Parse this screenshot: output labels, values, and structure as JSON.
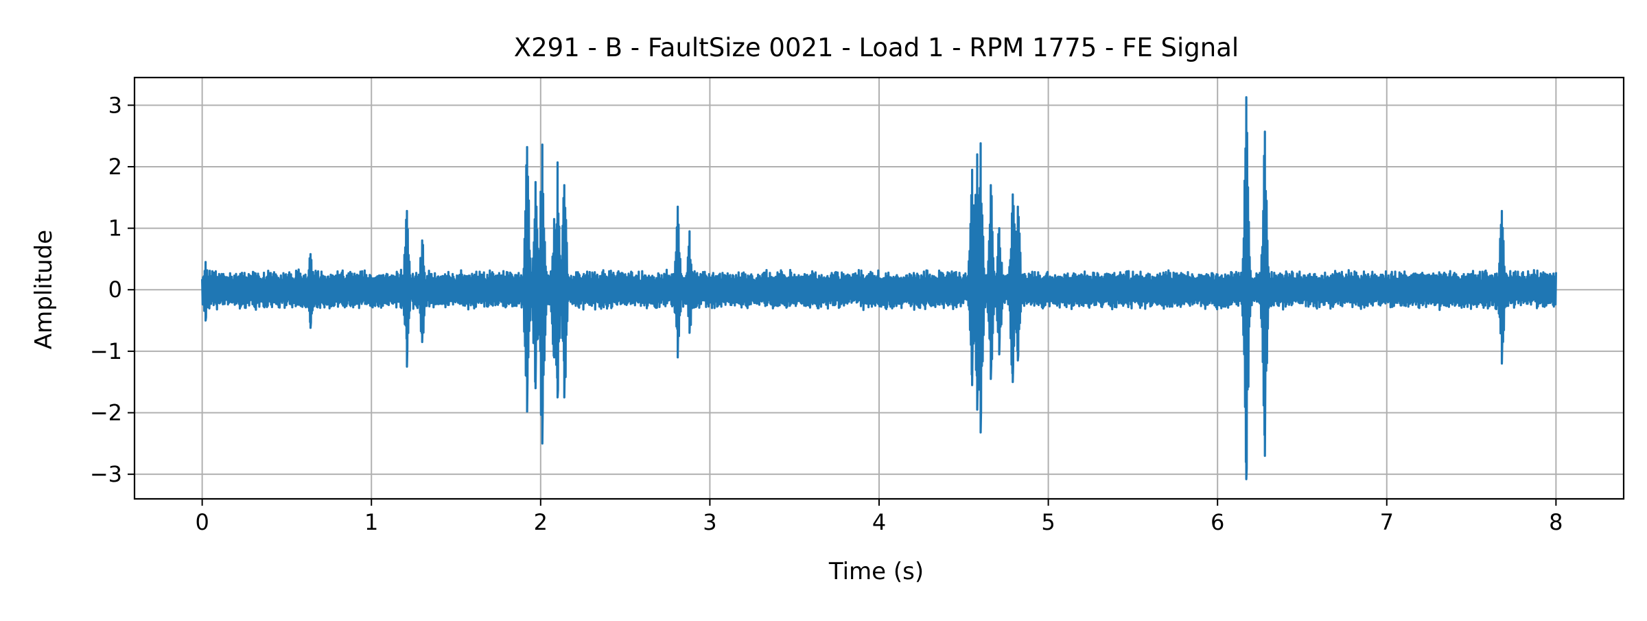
{
  "chart_data": {
    "type": "line",
    "title": "X291 - B - FaultSize 0021 - Load 1 - RPM 1775 - FE Signal",
    "xlabel": "Time (s)",
    "ylabel": "Amplitude",
    "xlim": [
      -0.4,
      8.4
    ],
    "ylim": [
      -3.4,
      3.45
    ],
    "x_ticks": [
      0,
      1,
      2,
      3,
      4,
      5,
      6,
      7,
      8
    ],
    "y_ticks": [
      3,
      2,
      1,
      0,
      -1,
      -2,
      -3
    ],
    "x_tick_labels": [
      "0",
      "1",
      "2",
      "3",
      "4",
      "5",
      "6",
      "7",
      "8"
    ],
    "y_tick_labels": [
      "3",
      "2",
      "1",
      "0",
      "−1",
      "−2",
      "−3"
    ],
    "grid": true,
    "legend": "none",
    "series": [
      {
        "color": "#1f77b4",
        "x_range": [
          0,
          8
        ],
        "baseline_amplitude": 0.3,
        "bursts": [
          {
            "t": 0.02,
            "peak_pos": 0.45,
            "peak_neg": -0.5
          },
          {
            "t": 0.64,
            "peak_pos": 0.58,
            "peak_neg": -0.62
          },
          {
            "t": 1.21,
            "peak_pos": 1.28,
            "peak_neg": -1.25
          },
          {
            "t": 1.3,
            "peak_pos": 0.8,
            "peak_neg": -0.85
          },
          {
            "t": 1.92,
            "peak_pos": 2.32,
            "peak_neg": -1.98
          },
          {
            "t": 1.97,
            "peak_pos": 1.75,
            "peak_neg": -1.6
          },
          {
            "t": 2.01,
            "peak_pos": 2.36,
            "peak_neg": -2.5
          },
          {
            "t": 2.08,
            "peak_pos": 1.15,
            "peak_neg": -1.1
          },
          {
            "t": 2.1,
            "peak_pos": 2.07,
            "peak_neg": -1.75
          },
          {
            "t": 2.14,
            "peak_pos": 1.7,
            "peak_neg": -1.75
          },
          {
            "t": 2.81,
            "peak_pos": 1.35,
            "peak_neg": -1.1
          },
          {
            "t": 2.88,
            "peak_pos": 0.95,
            "peak_neg": -0.7
          },
          {
            "t": 4.55,
            "peak_pos": 1.95,
            "peak_neg": -1.55
          },
          {
            "t": 4.58,
            "peak_pos": 2.2,
            "peak_neg": -1.95
          },
          {
            "t": 4.6,
            "peak_pos": 2.38,
            "peak_neg": -2.32
          },
          {
            "t": 4.66,
            "peak_pos": 1.7,
            "peak_neg": -1.45
          },
          {
            "t": 4.71,
            "peak_pos": 1.0,
            "peak_neg": -1.05
          },
          {
            "t": 4.79,
            "peak_pos": 1.55,
            "peak_neg": -1.5
          },
          {
            "t": 4.82,
            "peak_pos": 1.35,
            "peak_neg": -1.15
          },
          {
            "t": 6.17,
            "peak_pos": 3.13,
            "peak_neg": -3.08
          },
          {
            "t": 6.28,
            "peak_pos": 2.57,
            "peak_neg": -2.7
          },
          {
            "t": 7.68,
            "peak_pos": 1.28,
            "peak_neg": -1.2
          }
        ]
      }
    ]
  }
}
